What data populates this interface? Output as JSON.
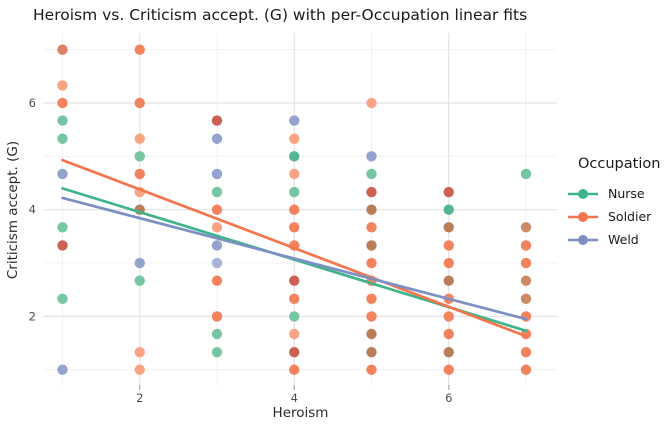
{
  "chart_data": {
    "type": "scatter",
    "title": "Heroism vs. Criticism accept. (G) with per-Occupation linear fits",
    "xlabel": "Heroism",
    "ylabel": "Criticism accept. (G)",
    "xlim": [
      0.76,
      7.4
    ],
    "ylim": [
      0.71,
      7.31
    ],
    "x_major_ticks": [
      2,
      4,
      6
    ],
    "y_major_ticks": [
      2,
      4,
      6
    ],
    "x_minor_gridlines": [
      1,
      3,
      5,
      7
    ],
    "y_minor_gridlines": [
      1,
      3,
      5,
      7
    ],
    "grid": "on",
    "legend": {
      "title": "Occupation",
      "position": "right",
      "entries": [
        {
          "name": "Nurse",
          "color": "#3FB38A"
        },
        {
          "name": "Soldier",
          "color": "#F4744E"
        },
        {
          "name": "Weld",
          "color": "#7C90C4"
        }
      ]
    },
    "point_palette": {
      "g": "#76C6A3",
      "gd": "#54B493",
      "o": "#F3825F",
      "od": "#D98166",
      "ol": "#FAA484",
      "b": "#93A3CE",
      "bl": "#A9B4D8",
      "r": "#CB6154",
      "br": "#B97E59",
      "t": "#CE8A64"
    },
    "points": [
      {
        "x": 1,
        "y": 7.0,
        "c": "od"
      },
      {
        "x": 1,
        "y": 6.33,
        "c": "ol"
      },
      {
        "x": 1,
        "y": 6.0,
        "c": "o"
      },
      {
        "x": 1,
        "y": 5.67,
        "c": "g"
      },
      {
        "x": 1,
        "y": 5.33,
        "c": "g"
      },
      {
        "x": 1,
        "y": 4.67,
        "c": "b"
      },
      {
        "x": 1,
        "y": 3.67,
        "c": "g"
      },
      {
        "x": 1,
        "y": 3.33,
        "c": "r"
      },
      {
        "x": 1,
        "y": 2.33,
        "c": "g"
      },
      {
        "x": 1,
        "y": 1.0,
        "c": "b"
      },
      {
        "x": 2,
        "y": 7.0,
        "c": "o"
      },
      {
        "x": 2,
        "y": 6.0,
        "c": "o"
      },
      {
        "x": 2,
        "y": 5.33,
        "c": "ol"
      },
      {
        "x": 2,
        "y": 5.0,
        "c": "g"
      },
      {
        "x": 2,
        "y": 4.67,
        "c": "o"
      },
      {
        "x": 2,
        "y": 4.33,
        "c": "ol"
      },
      {
        "x": 2,
        "y": 4.0,
        "c": "br"
      },
      {
        "x": 2,
        "y": 3.0,
        "c": "b"
      },
      {
        "x": 2,
        "y": 2.67,
        "c": "g"
      },
      {
        "x": 2,
        "y": 1.33,
        "c": "ol"
      },
      {
        "x": 2,
        "y": 1.0,
        "c": "ol"
      },
      {
        "x": 3,
        "y": 5.67,
        "c": "r"
      },
      {
        "x": 3,
        "y": 5.33,
        "c": "b"
      },
      {
        "x": 3,
        "y": 4.67,
        "c": "b"
      },
      {
        "x": 3,
        "y": 4.33,
        "c": "g"
      },
      {
        "x": 3,
        "y": 4.0,
        "c": "o"
      },
      {
        "x": 3,
        "y": 3.67,
        "c": "ol"
      },
      {
        "x": 3,
        "y": 3.33,
        "c": "b"
      },
      {
        "x": 3,
        "y": 3.0,
        "c": "bl"
      },
      {
        "x": 3,
        "y": 2.67,
        "c": "o"
      },
      {
        "x": 3,
        "y": 2.0,
        "c": "o"
      },
      {
        "x": 3,
        "y": 1.67,
        "c": "g"
      },
      {
        "x": 3,
        "y": 1.33,
        "c": "g"
      },
      {
        "x": 4,
        "y": 5.67,
        "c": "b"
      },
      {
        "x": 4,
        "y": 5.33,
        "c": "ol"
      },
      {
        "x": 4,
        "y": 5.0,
        "c": "gd"
      },
      {
        "x": 4,
        "y": 4.67,
        "c": "ol"
      },
      {
        "x": 4,
        "y": 4.33,
        "c": "g"
      },
      {
        "x": 4,
        "y": 4.0,
        "c": "o"
      },
      {
        "x": 4,
        "y": 3.67,
        "c": "o"
      },
      {
        "x": 4,
        "y": 3.33,
        "c": "o"
      },
      {
        "x": 4,
        "y": 2.67,
        "c": "r"
      },
      {
        "x": 4,
        "y": 2.33,
        "c": "o"
      },
      {
        "x": 4,
        "y": 2.0,
        "c": "g"
      },
      {
        "x": 4,
        "y": 1.67,
        "c": "ol"
      },
      {
        "x": 4,
        "y": 1.33,
        "c": "r"
      },
      {
        "x": 4,
        "y": 1.0,
        "c": "o"
      },
      {
        "x": 5,
        "y": 6.0,
        "c": "ol"
      },
      {
        "x": 5,
        "y": 5.0,
        "c": "b"
      },
      {
        "x": 5,
        "y": 4.67,
        "c": "g"
      },
      {
        "x": 5,
        "y": 4.33,
        "c": "r"
      },
      {
        "x": 5,
        "y": 4.0,
        "c": "br"
      },
      {
        "x": 5,
        "y": 3.67,
        "c": "o"
      },
      {
        "x": 5,
        "y": 3.33,
        "c": "br"
      },
      {
        "x": 5,
        "y": 3.0,
        "c": "o"
      },
      {
        "x": 5,
        "y": 2.67,
        "c": "o"
      },
      {
        "x": 5,
        "y": 2.33,
        "c": "o"
      },
      {
        "x": 5,
        "y": 2.0,
        "c": "o"
      },
      {
        "x": 5,
        "y": 1.67,
        "c": "br"
      },
      {
        "x": 5,
        "y": 1.33,
        "c": "br"
      },
      {
        "x": 5,
        "y": 1.0,
        "c": "o"
      },
      {
        "x": 6,
        "y": 4.33,
        "c": "r"
      },
      {
        "x": 6,
        "y": 4.0,
        "c": "gd"
      },
      {
        "x": 6,
        "y": 3.67,
        "c": "br"
      },
      {
        "x": 6,
        "y": 3.33,
        "c": "o"
      },
      {
        "x": 6,
        "y": 3.0,
        "c": "o"
      },
      {
        "x": 6,
        "y": 2.67,
        "c": "br"
      },
      {
        "x": 6,
        "y": 2.33,
        "c": "o"
      },
      {
        "x": 6,
        "y": 2.0,
        "c": "o"
      },
      {
        "x": 6,
        "y": 1.67,
        "c": "o"
      },
      {
        "x": 6,
        "y": 1.33,
        "c": "br"
      },
      {
        "x": 6,
        "y": 1.0,
        "c": "o"
      },
      {
        "x": 7,
        "y": 4.67,
        "c": "g"
      },
      {
        "x": 7,
        "y": 3.67,
        "c": "t"
      },
      {
        "x": 7,
        "y": 3.33,
        "c": "o"
      },
      {
        "x": 7,
        "y": 3.0,
        "c": "o"
      },
      {
        "x": 7,
        "y": 2.67,
        "c": "t"
      },
      {
        "x": 7,
        "y": 2.33,
        "c": "t"
      },
      {
        "x": 7,
        "y": 2.0,
        "c": "o"
      },
      {
        "x": 7,
        "y": 1.67,
        "c": "o"
      },
      {
        "x": 7,
        "y": 1.33,
        "c": "o"
      },
      {
        "x": 7,
        "y": 1.0,
        "c": "o"
      }
    ],
    "fits": [
      {
        "series": "Nurse",
        "color": "#3FB38A",
        "x_start": 1,
        "y_start": 4.4,
        "x_end": 7,
        "y_end": 1.73
      },
      {
        "series": "Soldier",
        "color": "#F4744E",
        "x_start": 1,
        "y_start": 4.93,
        "x_end": 7,
        "y_end": 1.63
      },
      {
        "series": "Weld",
        "color": "#7C90C4",
        "x_start": 1,
        "y_start": 4.22,
        "x_end": 7,
        "y_end": 1.95
      }
    ]
  }
}
